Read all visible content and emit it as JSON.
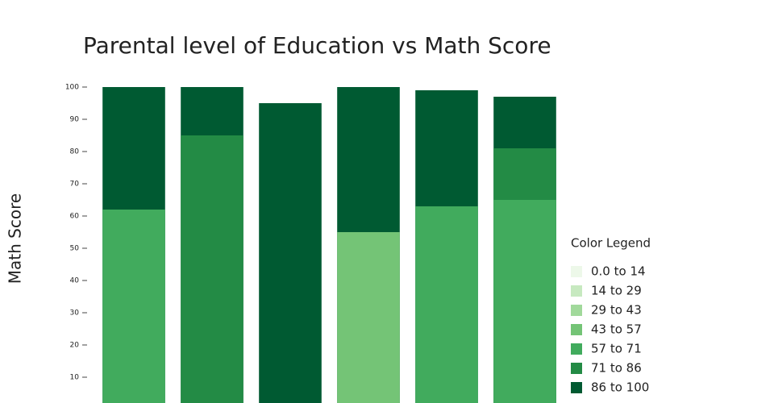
{
  "chart_data": {
    "type": "bar",
    "barmode": "overlay",
    "title": "Parental level of Education vs Math Score",
    "y_label": "Math Score",
    "legend_title": "Color Legend",
    "categories": [
      null,
      null,
      null,
      null,
      null,
      null
    ],
    "series": [
      {
        "name": "0.0 to 14",
        "color": "#edf8e9",
        "values": [
          null,
          null,
          null,
          null,
          null,
          null
        ]
      },
      {
        "name": "14 to 29",
        "color": "#c7e9c0",
        "values": [
          null,
          null,
          null,
          null,
          null,
          null
        ]
      },
      {
        "name": "29 to 43",
        "color": "#a1d99b",
        "values": [
          null,
          null,
          null,
          null,
          null,
          null
        ]
      },
      {
        "name": "43 to 57",
        "color": "#74c476",
        "values": [
          null,
          null,
          null,
          55,
          null,
          null
        ]
      },
      {
        "name": "57 to 71",
        "color": "#41ab5d",
        "values": [
          62,
          null,
          null,
          null,
          63,
          65
        ]
      },
      {
        "name": "71 to 86",
        "color": "#238b45",
        "values": [
          null,
          85,
          null,
          null,
          null,
          81
        ]
      },
      {
        "name": "86 to 100",
        "color": "#005a32",
        "values": [
          100,
          100,
          95,
          100,
          99,
          97
        ]
      }
    ],
    "ylim": [
      0,
      100
    ],
    "yticks": [
      10,
      20,
      30,
      40,
      50,
      60,
      70,
      80,
      90,
      100
    ]
  }
}
